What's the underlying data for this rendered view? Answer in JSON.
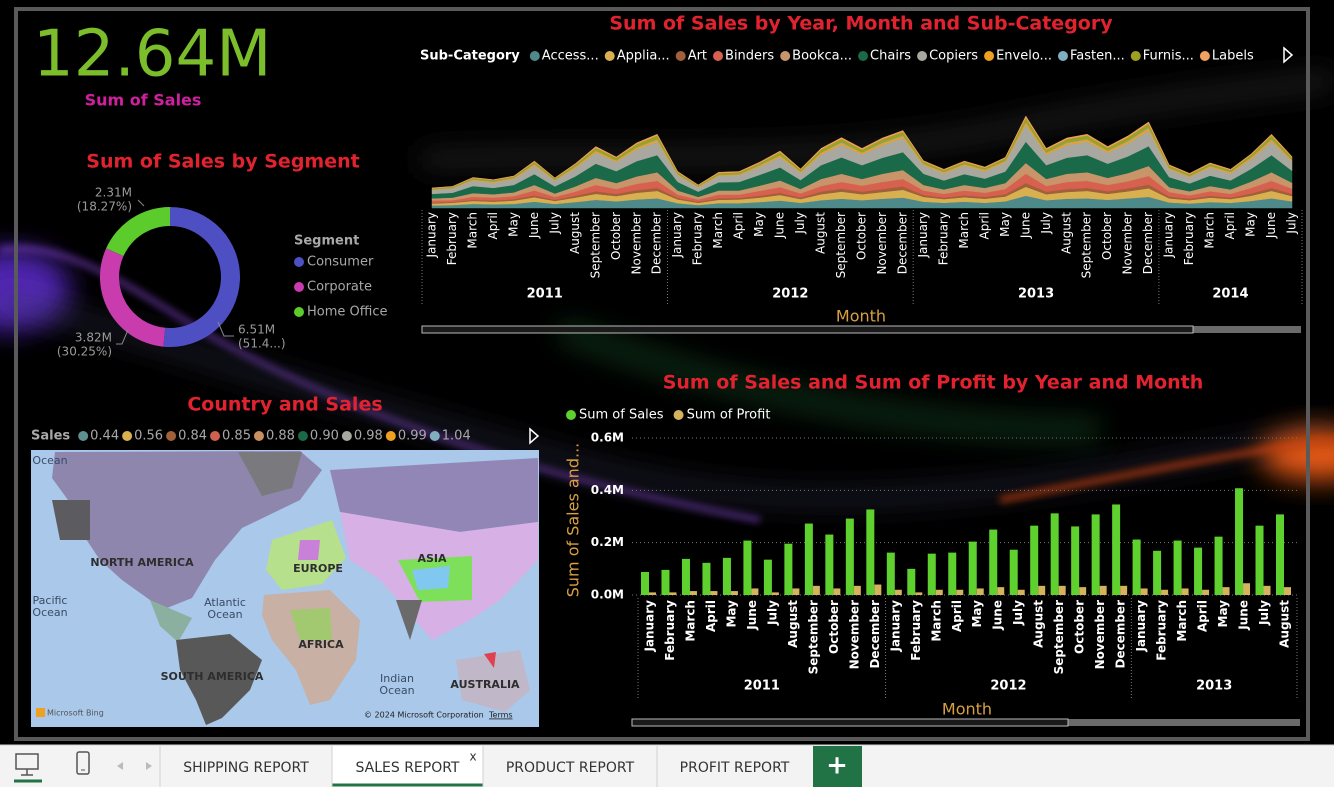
{
  "chart_data": [
    {
      "type": "card",
      "value": "12.64M",
      "label": "Sum of Sales"
    },
    {
      "type": "donut",
      "title": "Sum of Sales by Segment",
      "legend_title": "Segment",
      "categories": [
        "Consumer",
        "Corporate",
        "Home Office"
      ],
      "values": [
        6510000,
        3820000,
        2310000
      ],
      "value_labels": [
        "6.51M",
        "3.82M",
        "2.31M"
      ],
      "percent_labels": [
        "(51.4...)",
        "(30.25%)",
        "(18.27%)"
      ],
      "colors": [
        "#4f4fc4",
        "#c83cad",
        "#5ccc2c"
      ]
    },
    {
      "type": "stream",
      "title": "Sum of Sales by Year, Month and Sub-Category",
      "legend_title": "Sub-Category",
      "x_title": "Month",
      "groups": [
        {
          "label": "2011",
          "categories": [
            "January",
            "February",
            "March",
            "April",
            "May",
            "June",
            "July",
            "August",
            "September",
            "October",
            "November",
            "December"
          ]
        },
        {
          "label": "2012",
          "categories": [
            "January",
            "February",
            "March",
            "April",
            "May",
            "June",
            "July",
            "August",
            "September",
            "October",
            "November",
            "December"
          ]
        },
        {
          "label": "2013",
          "categories": [
            "January",
            "February",
            "March",
            "April",
            "May",
            "June",
            "July",
            "August",
            "September",
            "October",
            "November",
            "December"
          ]
        },
        {
          "label": "2014",
          "categories": [
            "January",
            "February",
            "March",
            "April",
            "May",
            "June",
            "July"
          ]
        }
      ],
      "series": [
        {
          "name": "Access...",
          "color": "#4f8a8a",
          "values": [
            7,
            8,
            11,
            10,
            11,
            17,
            11,
            16,
            22,
            18,
            23,
            26,
            13,
            8,
            13,
            13,
            16,
            20,
            14,
            21,
            25,
            21,
            25,
            28,
            17,
            14,
            17,
            14,
            18,
            33,
            21,
            25,
            26,
            22,
            26,
            30,
            15,
            12,
            16,
            14,
            19,
            26,
            18
          ]
        },
        {
          "name": "Applia...",
          "color": "#d8b050",
          "values": [
            5,
            6,
            8,
            7,
            9,
            12,
            8,
            12,
            16,
            14,
            18,
            20,
            10,
            6,
            9,
            10,
            12,
            15,
            10,
            16,
            19,
            16,
            18,
            21,
            13,
            10,
            12,
            11,
            13,
            24,
            16,
            18,
            20,
            16,
            19,
            23,
            11,
            9,
            12,
            10,
            14,
            20,
            14
          ]
        },
        {
          "name": "Art",
          "color": "#a0603a",
          "values": [
            2,
            2,
            3,
            3,
            4,
            5,
            3,
            5,
            7,
            6,
            7,
            8,
            4,
            3,
            4,
            4,
            5,
            6,
            4,
            7,
            8,
            7,
            8,
            9,
            5,
            4,
            5,
            5,
            6,
            10,
            7,
            8,
            8,
            7,
            8,
            10,
            5,
            4,
            5,
            4,
            6,
            8,
            6
          ]
        },
        {
          "name": "Binders",
          "color": "#d8604e",
          "values": [
            6,
            5,
            8,
            8,
            8,
            13,
            8,
            11,
            17,
            13,
            17,
            19,
            9,
            6,
            10,
            9,
            13,
            15,
            11,
            15,
            18,
            16,
            19,
            20,
            12,
            10,
            13,
            11,
            14,
            25,
            15,
            19,
            19,
            17,
            19,
            23,
            12,
            9,
            12,
            10,
            15,
            19,
            14
          ]
        },
        {
          "name": "Bookca...",
          "color": "#c8946a",
          "values": [
            6,
            7,
            10,
            9,
            10,
            15,
            9,
            14,
            19,
            16,
            20,
            23,
            11,
            7,
            11,
            11,
            14,
            18,
            12,
            19,
            22,
            18,
            22,
            24,
            15,
            12,
            15,
            13,
            16,
            29,
            19,
            22,
            23,
            19,
            22,
            27,
            13,
            11,
            14,
            12,
            17,
            23,
            16
          ]
        },
        {
          "name": "Chairs",
          "color": "#1a6a4a",
          "values": [
            12,
            13,
            19,
            17,
            20,
            29,
            19,
            27,
            38,
            32,
            41,
            46,
            23,
            14,
            22,
            23,
            29,
            35,
            24,
            37,
            44,
            37,
            43,
            48,
            30,
            24,
            29,
            25,
            31,
            57,
            37,
            43,
            46,
            38,
            45,
            53,
            27,
            21,
            28,
            24,
            34,
            46,
            32
          ]
        },
        {
          "name": "Copiers",
          "color": "#a8a8a0",
          "values": [
            10,
            11,
            15,
            14,
            16,
            23,
            15,
            22,
            30,
            25,
            32,
            36,
            18,
            11,
            17,
            18,
            22,
            28,
            19,
            29,
            34,
            29,
            34,
            38,
            23,
            19,
            23,
            20,
            25,
            45,
            29,
            34,
            36,
            30,
            35,
            42,
            21,
            17,
            22,
            19,
            26,
            36,
            25
          ]
        },
        {
          "name": "Envelo...",
          "color": "#f0a020",
          "values": [
            1,
            1,
            2,
            2,
            2,
            3,
            2,
            3,
            4,
            3,
            4,
            5,
            2,
            2,
            2,
            2,
            3,
            4,
            3,
            4,
            5,
            4,
            5,
            5,
            3,
            3,
            3,
            3,
            3,
            6,
            4,
            5,
            5,
            4,
            5,
            6,
            3,
            2,
            3,
            3,
            4,
            5,
            3
          ]
        },
        {
          "name": "Fasten...",
          "color": "#80b0c0",
          "values": [
            1,
            1,
            1,
            1,
            1,
            1,
            1,
            1,
            1,
            1,
            1,
            2,
            1,
            1,
            1,
            1,
            1,
            1,
            1,
            1,
            2,
            1,
            2,
            2,
            1,
            1,
            1,
            1,
            1,
            2,
            1,
            2,
            2,
            1,
            2,
            2,
            1,
            1,
            1,
            1,
            1,
            2,
            1
          ]
        },
        {
          "name": "Furnis...",
          "color": "#a0a020",
          "values": [
            3,
            3,
            4,
            4,
            4,
            6,
            4,
            6,
            8,
            7,
            9,
            10,
            5,
            3,
            5,
            5,
            6,
            8,
            5,
            8,
            9,
            8,
            9,
            10,
            6,
            5,
            6,
            5,
            7,
            12,
            8,
            9,
            10,
            8,
            10,
            11,
            6,
            5,
            6,
            5,
            7,
            10,
            7
          ]
        },
        {
          "name": "Labels",
          "color": "#f0a060",
          "values": [
            1,
            1,
            1,
            1,
            1,
            2,
            1,
            2,
            3,
            2,
            3,
            3,
            2,
            1,
            2,
            2,
            2,
            3,
            2,
            3,
            3,
            3,
            3,
            3,
            2,
            2,
            2,
            2,
            2,
            4,
            3,
            3,
            3,
            3,
            3,
            4,
            2,
            2,
            2,
            2,
            2,
            3,
            2
          ]
        }
      ]
    },
    {
      "type": "map",
      "title": "Country and Sales",
      "legend_title": "Sales",
      "legend_values": [
        0.44,
        0.56,
        0.84,
        0.85,
        0.88,
        {
          "value": 0.9,
          "label": "0.90"
        },
        0.98,
        0.99,
        1.04
      ],
      "legend_colors": [
        "#5f8f8f",
        "#d8b050",
        "#a0603a",
        "#d06050",
        "#c89060",
        "#1a6a4a",
        "#a8a8a0",
        "#f0a020",
        "#80b0c0"
      ],
      "continent_labels": [
        "NORTH AMERICA",
        "EUROPE",
        "ASIA",
        "AFRICA",
        "SOUTH AMERICA",
        "AUSTRALIA"
      ],
      "ocean_labels": [
        [
          "Ocean"
        ],
        [
          "Pacific",
          "Ocean"
        ],
        [
          "Atlantic",
          "Ocean"
        ],
        [
          "Indian",
          "Ocean"
        ]
      ],
      "attribution": "Microsoft Bing",
      "copyright": "© 2024 Microsoft Corporation",
      "terms": "Terms"
    },
    {
      "type": "bar",
      "title": "Sum of Sales and Sum of Profit by Year and Month",
      "x_title": "Month",
      "y_title": "Sum of Sales and...",
      "groups": [
        {
          "label": "2011",
          "categories": [
            "January",
            "February",
            "March",
            "April",
            "May",
            "June",
            "July",
            "August",
            "September",
            "October",
            "November",
            "December"
          ]
        },
        {
          "label": "2012",
          "categories": [
            "January",
            "February",
            "March",
            "April",
            "May",
            "June",
            "July",
            "August",
            "September",
            "October",
            "November",
            "December"
          ]
        },
        {
          "label": "2013",
          "categories": [
            "January",
            "February",
            "March",
            "April",
            "May",
            "June",
            "July",
            "August"
          ]
        }
      ],
      "series": [
        {
          "name": "Sum of Sales",
          "color": "#5fd12e",
          "values": [
            88000,
            96000,
            138000,
            123000,
            142000,
            208000,
            135000,
            196000,
            273000,
            231000,
            292000,
            327000,
            162000,
            100000,
            158000,
            162000,
            204000,
            250000,
            173000,
            265000,
            312000,
            262000,
            308000,
            346000,
            212000,
            169000,
            208000,
            181000,
            223000,
            408000,
            265000,
            308000
          ]
        },
        {
          "name": "Sum of Profit",
          "color": "#d4b35c",
          "values": [
            10000,
            10000,
            15000,
            15000,
            15000,
            25000,
            10000,
            25000,
            35000,
            25000,
            35000,
            40000,
            20000,
            10000,
            20000,
            20000,
            25000,
            30000,
            20000,
            35000,
            35000,
            30000,
            35000,
            35000,
            25000,
            20000,
            25000,
            20000,
            30000,
            45000,
            35000,
            30000
          ]
        }
      ],
      "ylim": [
        0,
        600000
      ],
      "yticks": [
        {
          "value": 0,
          "label": "0.0M"
        },
        {
          "value": 200000,
          "label": "0.2M"
        },
        {
          "value": 400000,
          "label": "0.4M"
        },
        {
          "value": 600000,
          "label": "0.6M"
        }
      ],
      "grid": true
    }
  ],
  "tabs": {
    "items": [
      "SHIPPING REPORT",
      "SALES REPORT",
      "PRODUCT REPORT",
      "PROFIT REPORT"
    ],
    "active": 1,
    "close": "x",
    "add": "+"
  }
}
